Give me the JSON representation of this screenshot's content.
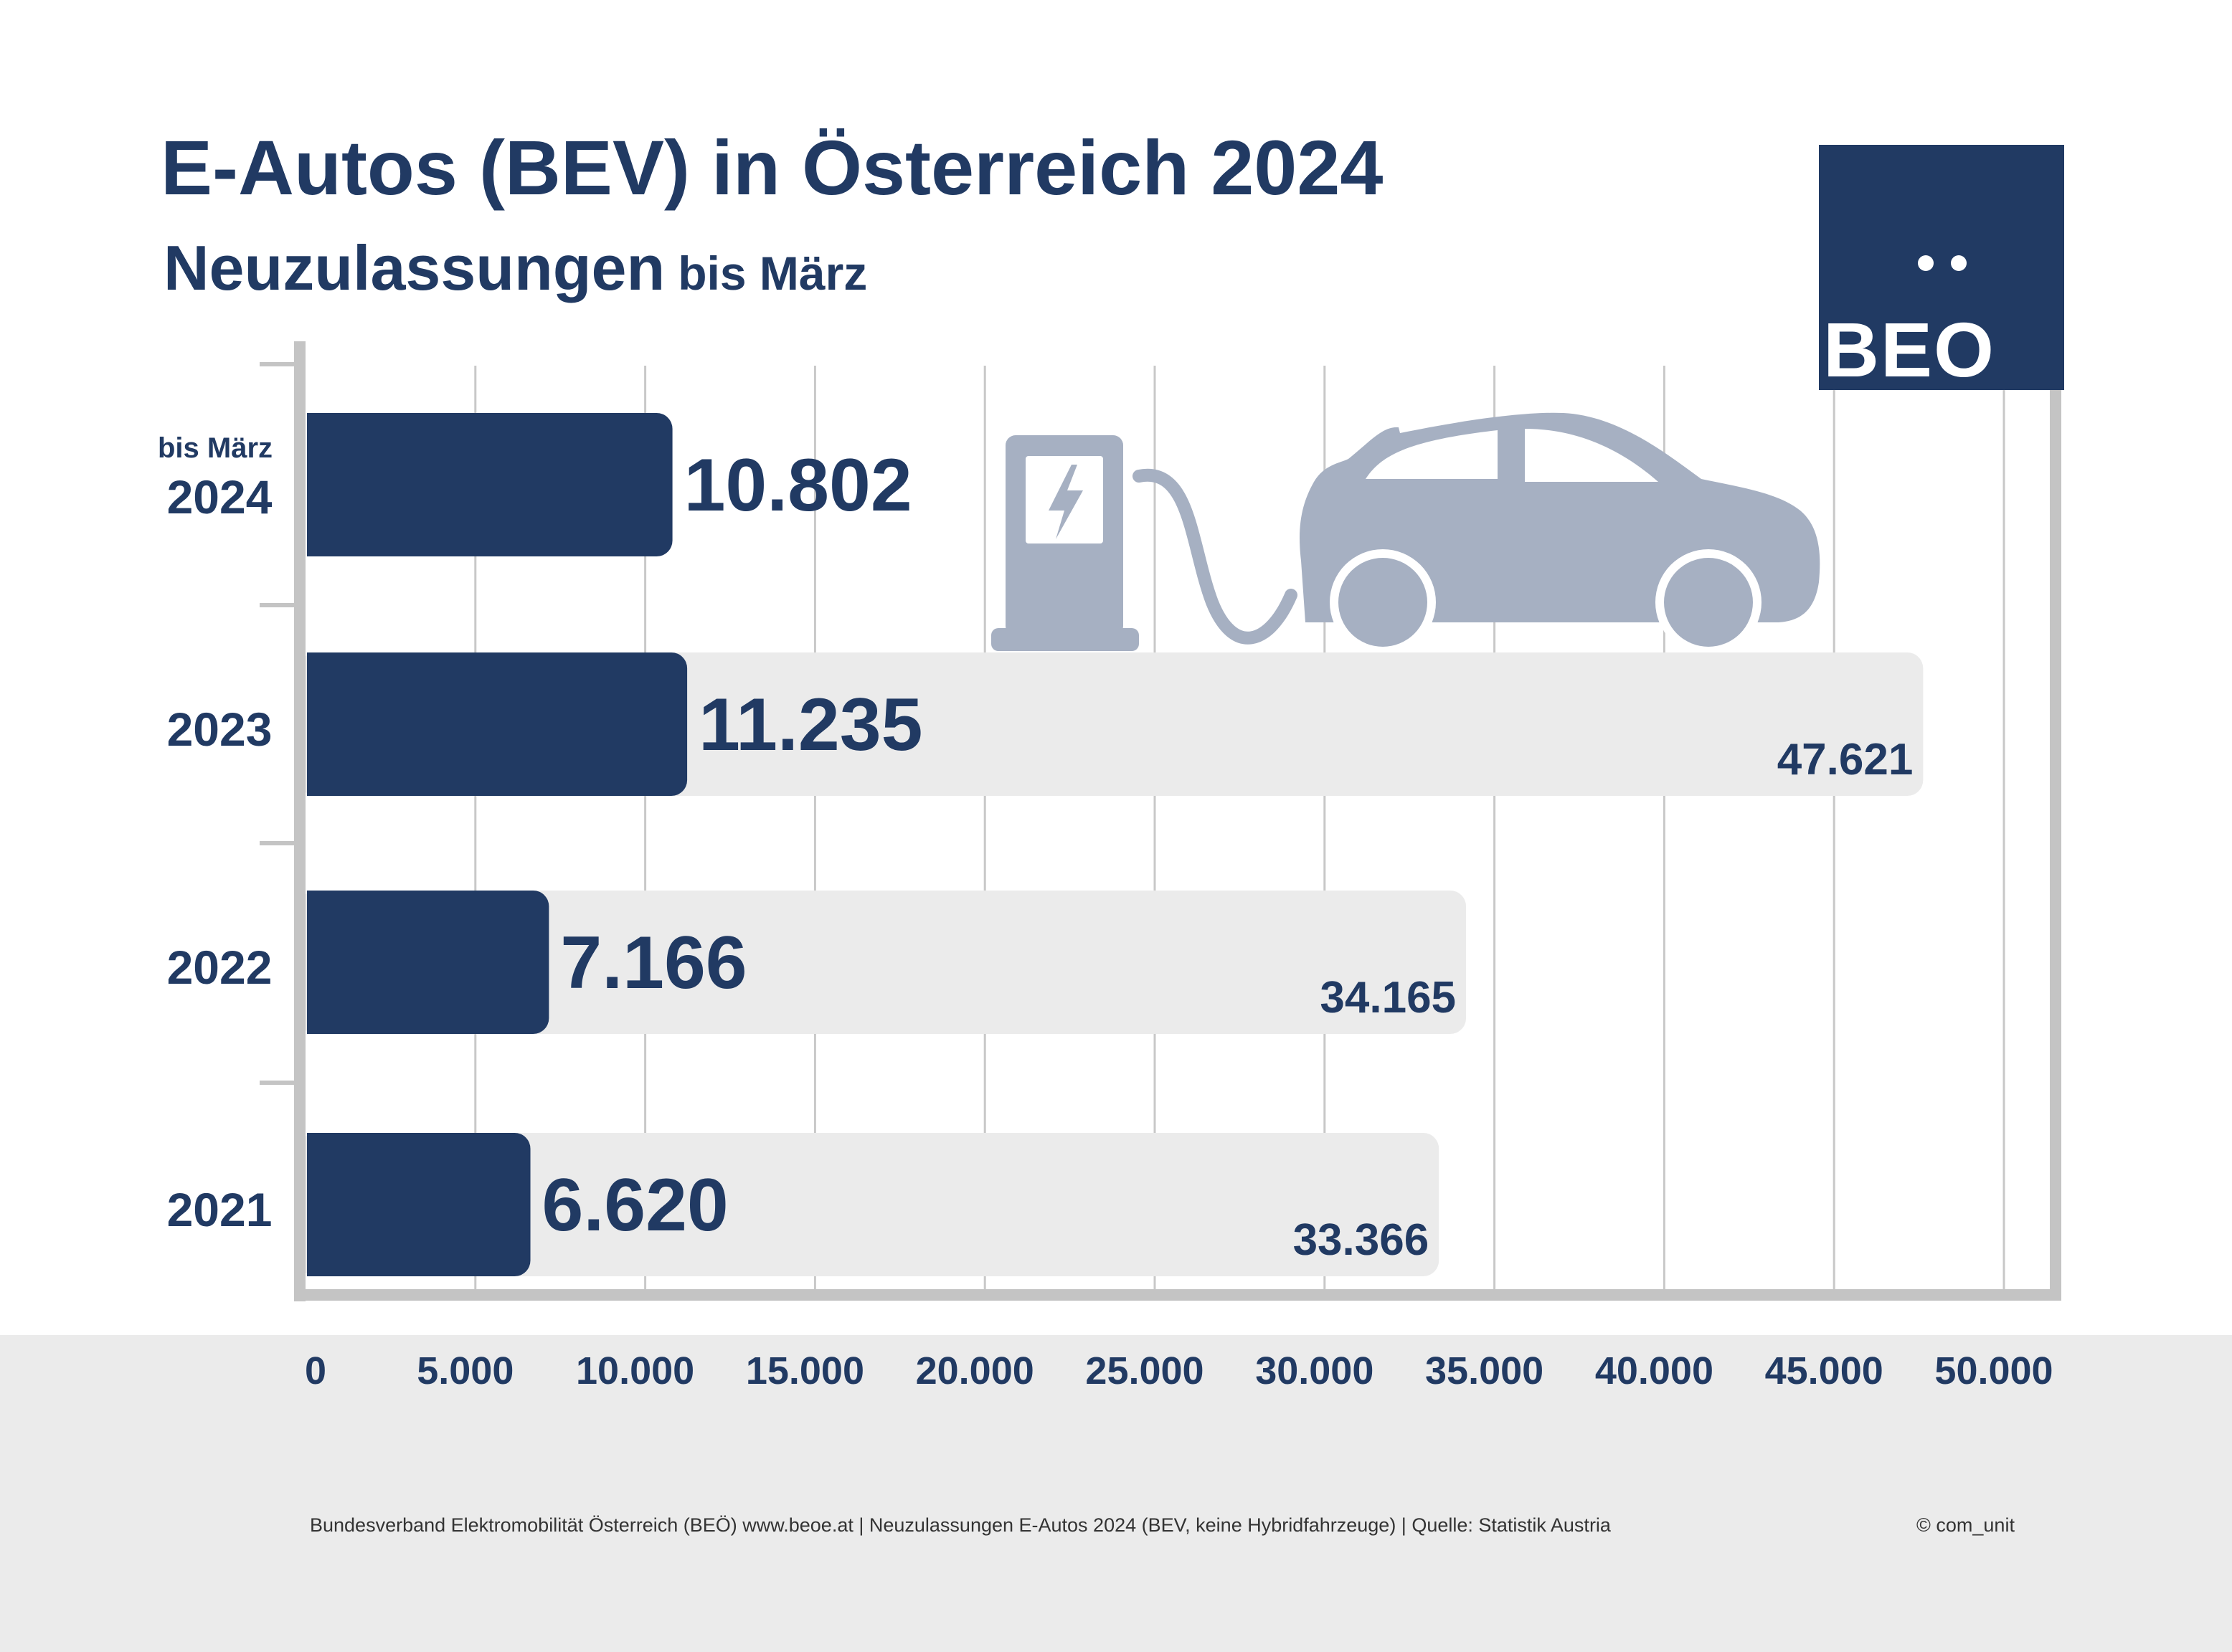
{
  "chart_data": {
    "type": "bar",
    "orientation": "horizontal",
    "title": "E-Autos (BEV) in Österreich 2024",
    "subtitle": "Neuzulassungen",
    "subtitle_suffix": "bis März",
    "categories": [
      {
        "label": "2024",
        "sublabel": "bis März"
      },
      {
        "label": "2023",
        "sublabel": ""
      },
      {
        "label": "2022",
        "sublabel": ""
      },
      {
        "label": "2021",
        "sublabel": ""
      }
    ],
    "series": [
      {
        "values": [
          10802,
          11235,
          7166,
          6620
        ],
        "labels": [
          "10.802",
          "11.235",
          "7.166",
          "6.620"
        ],
        "color": "#213a63"
      },
      {
        "values": [
          null,
          47621,
          34165,
          33366
        ],
        "labels": [
          "",
          "47.621",
          "34.165",
          "33.366"
        ],
        "color": "#ebebeb"
      }
    ],
    "xlim": [
      0,
      50000
    ],
    "x_ticks": [
      {
        "value": 0,
        "label": "0"
      },
      {
        "value": 5000,
        "label": "5.000"
      },
      {
        "value": 10000,
        "label": "10.000"
      },
      {
        "value": 15000,
        "label": "15.000"
      },
      {
        "value": 20000,
        "label": "20.000"
      },
      {
        "value": 25000,
        "label": "25.000"
      },
      {
        "value": 30000,
        "label": "30.000"
      },
      {
        "value": 35000,
        "label": "35.000"
      },
      {
        "value": 40000,
        "label": "40.000"
      },
      {
        "value": 45000,
        "label": "45.000"
      },
      {
        "value": 50000,
        "label": "50.000"
      }
    ],
    "grid": true,
    "xlabel": "",
    "ylabel": ""
  },
  "logo": {
    "text": "BEO"
  },
  "illustration": {
    "icon": "ev-charging-car-icon",
    "color": "#a6b0c2"
  },
  "footer": {
    "source": "Bundesverband Elektromobilität Österreich (BEÖ) www.beoe.at | Neuzulassungen E-Autos 2024 (BEV, keine Hybridfahrzeuge) | Quelle: Statistik Austria",
    "copyright": "© com_unit"
  },
  "colors": {
    "primary": "#213a63",
    "secondary_bar": "#ebebeb",
    "frame": "#c4c4c4",
    "illustration": "#a6b0c2"
  }
}
